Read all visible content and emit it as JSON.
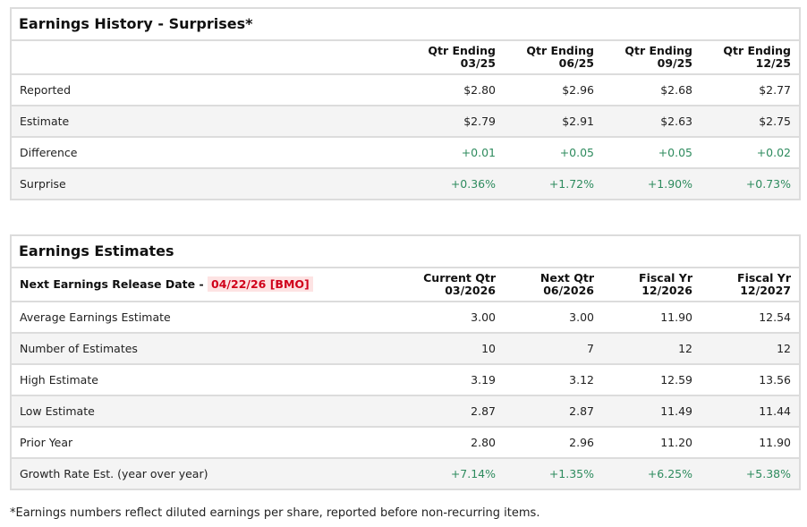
{
  "history": {
    "title": "Earnings History - Surprises*",
    "columns": [
      [
        "Qtr Ending",
        "03/25"
      ],
      [
        "Qtr Ending",
        "06/25"
      ],
      [
        "Qtr Ending",
        "09/25"
      ],
      [
        "Qtr Ending",
        "12/25"
      ]
    ],
    "rows": [
      {
        "label": "Reported",
        "values": [
          "$2.80",
          "$2.96",
          "$2.68",
          "$2.77"
        ]
      },
      {
        "label": "Estimate",
        "values": [
          "$2.79",
          "$2.91",
          "$2.63",
          "$2.75"
        ]
      },
      {
        "label": "Difference",
        "values": [
          "+0.01",
          "+0.05",
          "+0.05",
          "+0.02"
        ],
        "positive": true
      },
      {
        "label": "Surprise",
        "values": [
          "+0.36%",
          "+1.72%",
          "+1.90%",
          "+0.73%"
        ],
        "positive": true
      }
    ]
  },
  "estimates": {
    "title": "Earnings Estimates",
    "release_label": "Next Earnings Release Date - ",
    "release_date": "04/22/26 [BMO]",
    "columns": [
      [
        "Current Qtr",
        "03/2026"
      ],
      [
        "Next Qtr",
        "06/2026"
      ],
      [
        "Fiscal Yr",
        "12/2026"
      ],
      [
        "Fiscal Yr",
        "12/2027"
      ]
    ],
    "rows": [
      {
        "label": "Average Earnings Estimate",
        "values": [
          "3.00",
          "3.00",
          "11.90",
          "12.54"
        ]
      },
      {
        "label": "Number of Estimates",
        "values": [
          "10",
          "7",
          "12",
          "12"
        ]
      },
      {
        "label": "High Estimate",
        "values": [
          "3.19",
          "3.12",
          "12.59",
          "13.56"
        ]
      },
      {
        "label": "Low Estimate",
        "values": [
          "2.87",
          "2.87",
          "11.49",
          "11.44"
        ]
      },
      {
        "label": "Prior Year",
        "values": [
          "2.80",
          "2.96",
          "11.20",
          "11.90"
        ]
      },
      {
        "label": "Growth Rate Est. (year over year)",
        "values": [
          "+7.14%",
          "+1.35%",
          "+6.25%",
          "+5.38%"
        ],
        "positive": true
      }
    ]
  },
  "footnote": "*Earnings numbers reflect diluted earnings per share, reported before non-recurring items.",
  "colors": {
    "positive": "#2e8b5e",
    "badge_text": "#d0021b",
    "badge_bg": "#fde3e3"
  }
}
